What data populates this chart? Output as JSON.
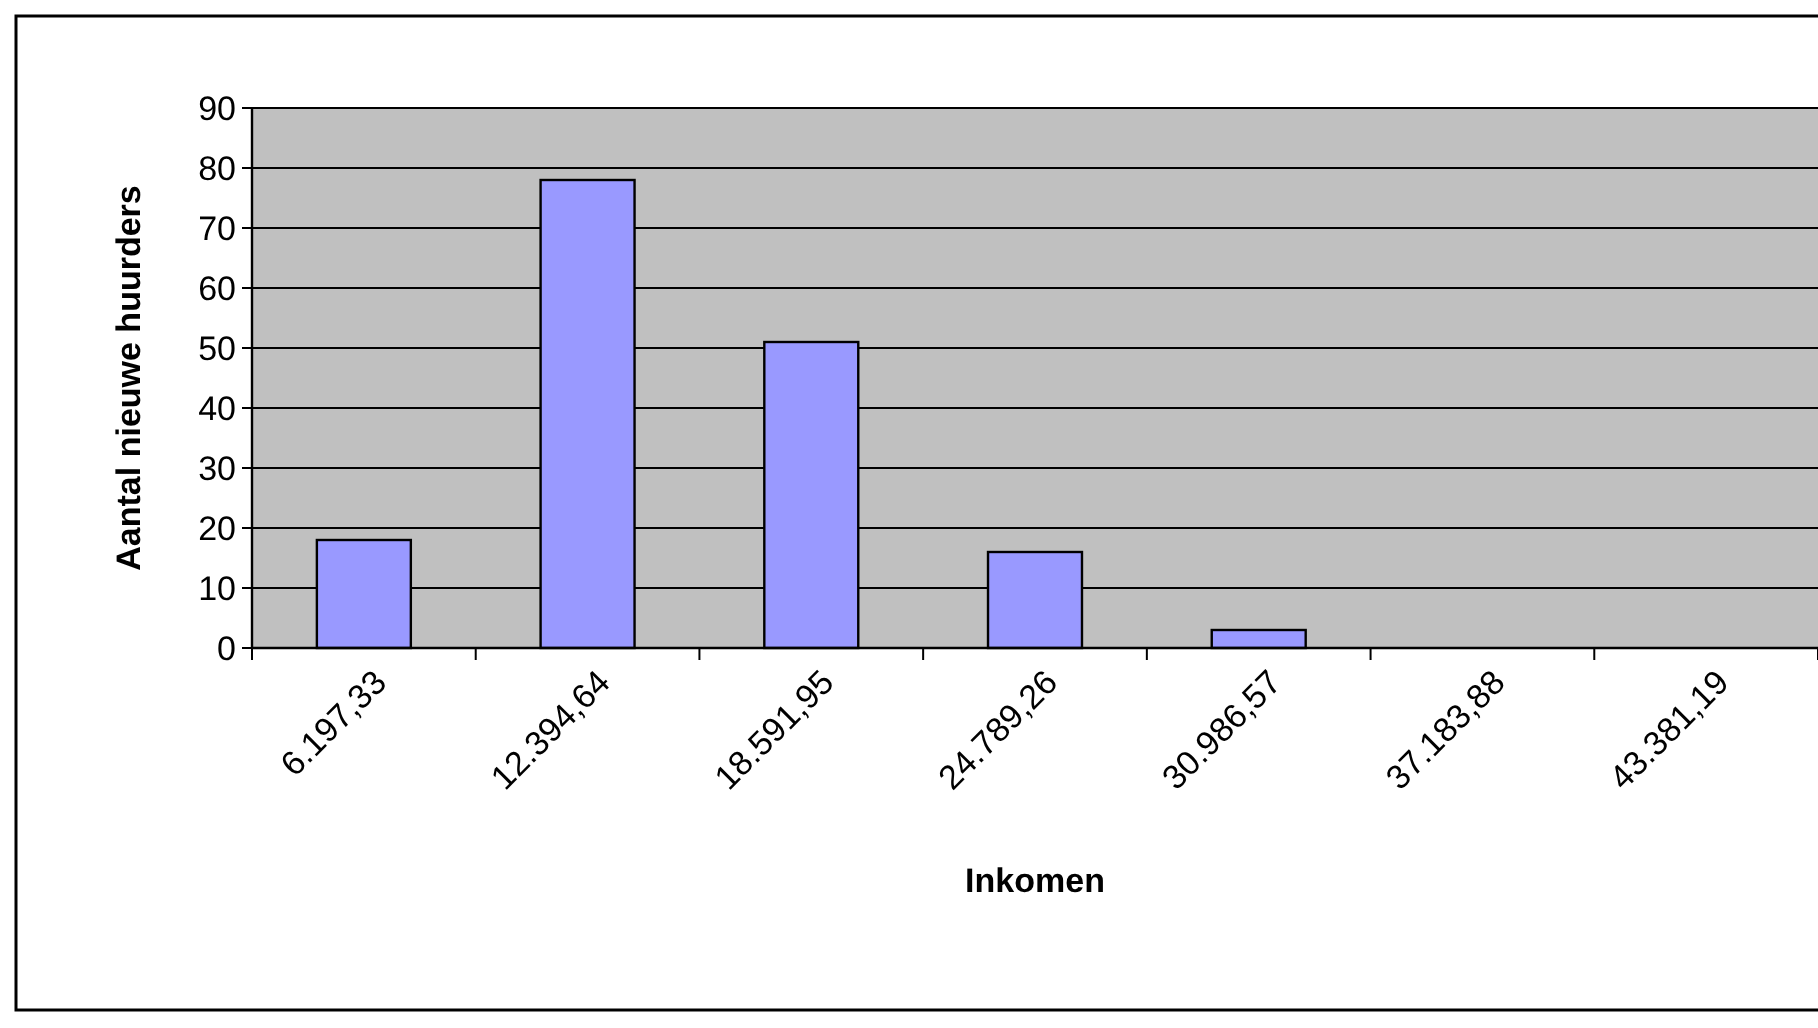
{
  "chart_data": {
    "type": "bar",
    "xlabel": "Inkomen",
    "ylabel": "Aantal nieuwe huurders",
    "categories": [
      "6.197,33",
      "12.394,64",
      "18.591,95",
      "24.789,26",
      "30.986,57",
      "37.183,88",
      "43.381,19"
    ],
    "values": [
      18,
      78,
      51,
      16,
      3,
      0,
      0
    ],
    "color": "#9999ff",
    "ylim": [
      0,
      90
    ],
    "yticks": [
      0,
      10,
      20,
      30,
      40,
      50,
      60,
      70,
      80,
      90
    ],
    "grid": "y"
  }
}
